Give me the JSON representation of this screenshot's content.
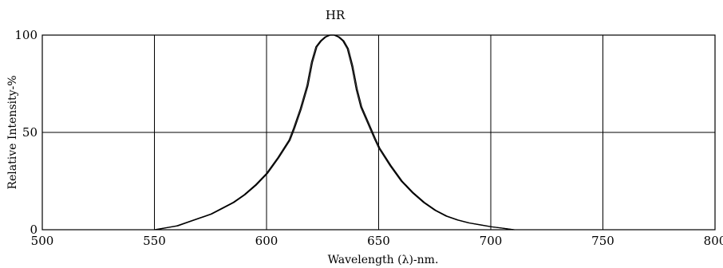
{
  "chart_data": {
    "type": "line",
    "title": "HR",
    "xlabel": "Wavelength (λ)-nm.",
    "ylabel": "Relative Intensity-%",
    "xlim": [
      500,
      800
    ],
    "ylim": [
      0,
      100
    ],
    "x_ticks": [
      "500",
      "550",
      "600",
      "650",
      "700",
      "750",
      "800"
    ],
    "y_ticks": [
      "0",
      "50",
      "100"
    ],
    "grid": true,
    "series": [
      {
        "x": [
          550,
          555,
          560,
          565,
          570,
          575,
          580,
          585,
          590,
          595,
          600,
          605,
          610,
          612,
          615,
          618,
          620,
          622,
          624,
          626,
          628,
          630,
          632,
          634,
          636,
          638,
          640,
          642,
          645,
          648,
          650,
          655,
          660,
          665,
          670,
          675,
          680,
          685,
          690,
          695,
          700,
          705,
          710
        ],
        "y": [
          0,
          1,
          2,
          4,
          6,
          8,
          11,
          14,
          18,
          23,
          29,
          37,
          46,
          52,
          62,
          74,
          86,
          94,
          97,
          99,
          100,
          100,
          99,
          97,
          93,
          84,
          72,
          63,
          55,
          47,
          42,
          33,
          25,
          19,
          14,
          10,
          7,
          5,
          3.5,
          2.5,
          1.5,
          0.8,
          0
        ]
      }
    ]
  }
}
